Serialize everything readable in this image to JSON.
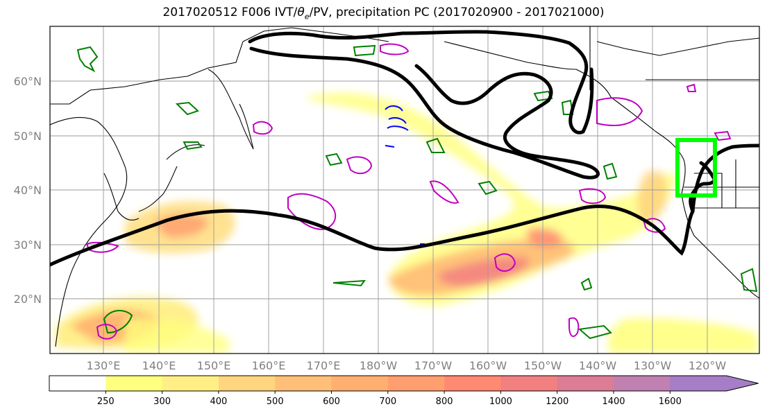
{
  "figure": {
    "title_pre": "2017020512 F006 IVT/",
    "title_theta": "θ",
    "title_sub": "e",
    "title_post": "/PV, precipitation PC (2017020900 - 2017021000)"
  },
  "map": {
    "lat_labels": [
      "60°N",
      "50°N",
      "40°N",
      "30°N",
      "20°N"
    ],
    "lon_labels": [
      "130°E",
      "140°E",
      "150°E",
      "160°E",
      "170°E",
      "180°W",
      "170°W",
      "160°W",
      "150°W",
      "140°W",
      "130°W",
      "120°W"
    ],
    "box_color": "#00ff00",
    "jet_color": "#000000",
    "pv_color": "#008000",
    "theta_color": "#c000c0"
  },
  "colorbar": {
    "ticks": [
      "250",
      "300",
      "400",
      "500",
      "600",
      "700",
      "800",
      "1000",
      "1200",
      "1400",
      "1600"
    ],
    "colors": [
      "#ffffff",
      "#ffff80",
      "#ffef85",
      "#ffd57f",
      "#ffbf78",
      "#ffb070",
      "#ff9f70",
      "#ff8a72",
      "#f28080",
      "#dc7c95",
      "#c081b1",
      "#a57ec7"
    ]
  }
}
